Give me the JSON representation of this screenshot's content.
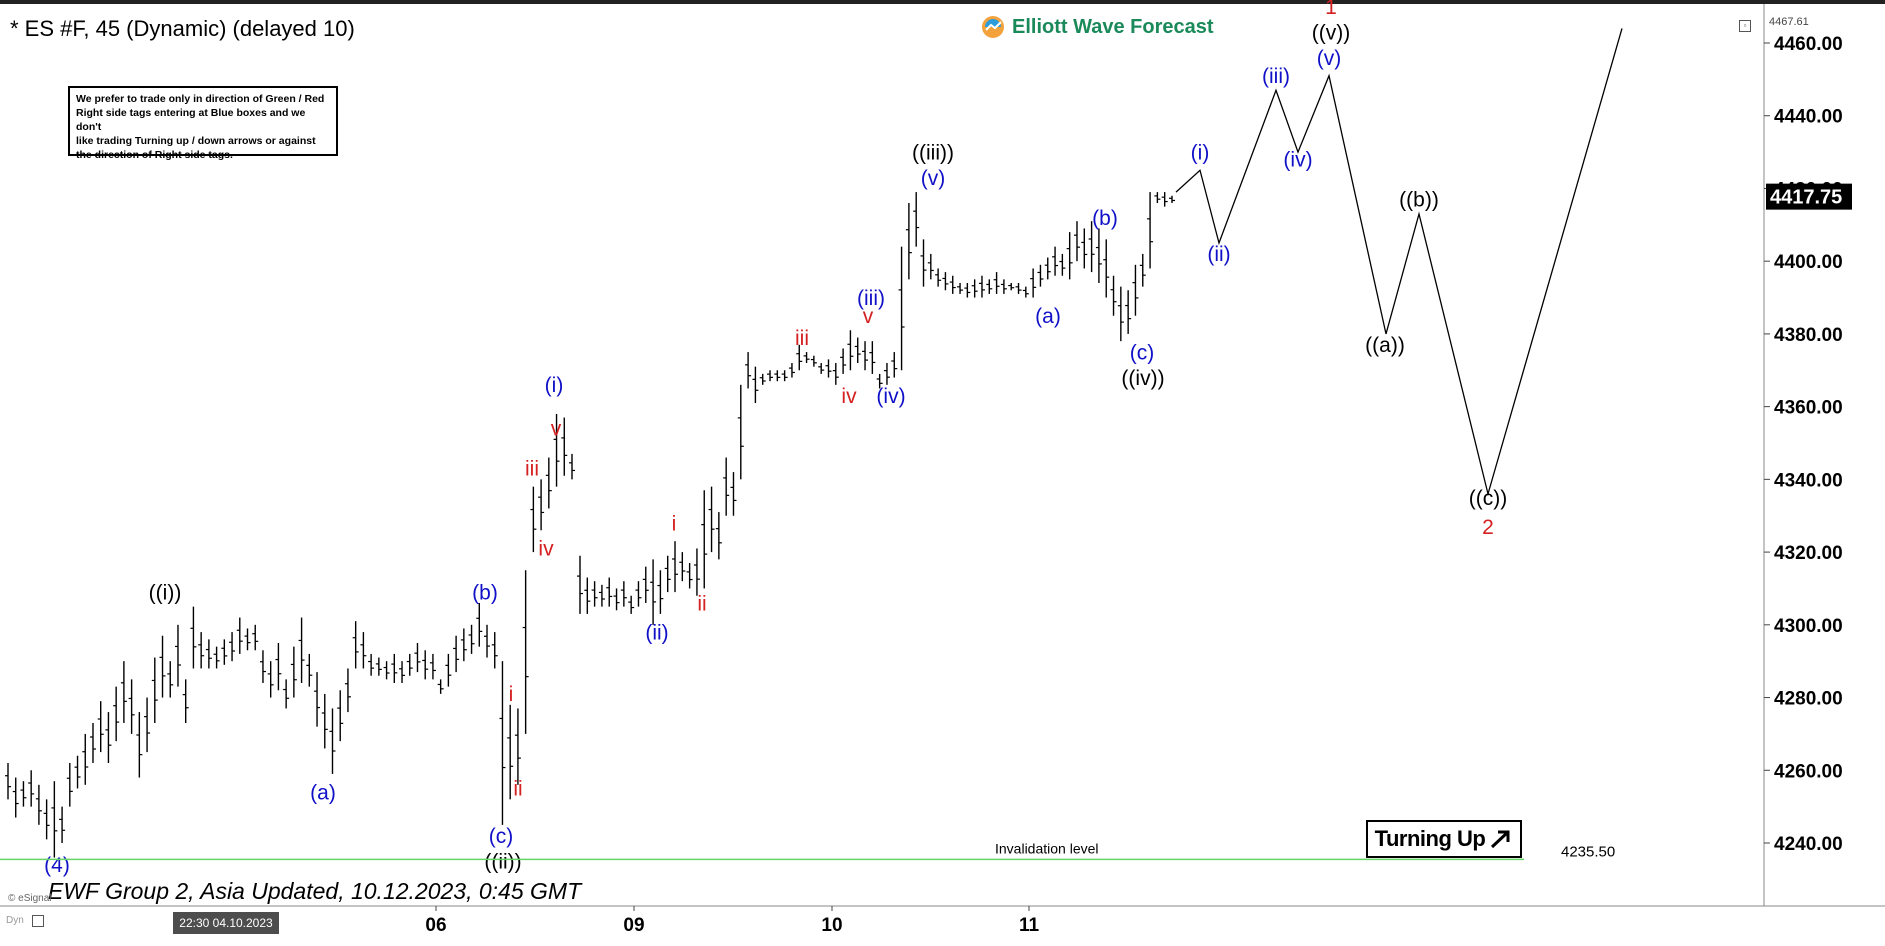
{
  "header": {
    "title": "* ES #F, 45 (Dynamic) (delayed 10)",
    "brand": "Elliott Wave Forecast"
  },
  "note_box": {
    "lines": [
      "We prefer to trade only in direction of Green / Red",
      "Right side tags entering at Blue boxes and we don't",
      "like trading Turning up / down arrows or against",
      "the direction of Right side tags."
    ]
  },
  "footer": {
    "text": "EWF Group 2, Asia Updated, 10.12.2023, 0:45 GMT",
    "source": "© eSignal",
    "dyn": "Dyn",
    "date_box": "22:30 04.10.2023"
  },
  "badge": {
    "label": "Turning Up"
  },
  "colors": {
    "blue": "#1010c8",
    "red": "#d42020",
    "black": "#000000",
    "green": "#66d466",
    "bar": "#000000",
    "brand_green": "#1b8a5a"
  },
  "chart_data": {
    "type": "ohlc",
    "ylim": [
      4225,
      4472
    ],
    "y_ticks": [
      "4240.00",
      "4260.00",
      "4280.00",
      "4300.00",
      "4320.00",
      "4340.00",
      "4360.00",
      "4380.00",
      "4400.00",
      "4420.00",
      "4440.00",
      "4460.00"
    ],
    "x_ticks": [
      "06",
      "09",
      "10",
      "11"
    ],
    "top_readout": "4467.61",
    "last_price": "4417.75",
    "invalidation": {
      "label": "Invalidation level",
      "value": 4235.5,
      "value_label": "4235.50"
    },
    "bars": [
      [
        4262,
        4252
      ],
      [
        4258,
        4247
      ],
      [
        4257,
        4250
      ],
      [
        4260,
        4250
      ],
      [
        4256,
        4245
      ],
      [
        4252,
        4241
      ],
      [
        4257,
        4236
      ],
      [
        4250,
        4240
      ],
      [
        4262,
        4250
      ],
      [
        4264,
        4255
      ],
      [
        4270,
        4256
      ],
      [
        4273,
        4262
      ],
      [
        4279,
        4265
      ],
      [
        4276,
        4262
      ],
      [
        4283,
        4268
      ],
      [
        4290,
        4273
      ],
      [
        4285,
        4270
      ],
      [
        4276,
        4258
      ],
      [
        4280,
        4265
      ],
      [
        4291,
        4273
      ],
      [
        4297,
        4280
      ],
      [
        4290,
        4280
      ],
      [
        4300,
        4283
      ],
      [
        4285,
        4273
      ],
      [
        4305,
        4288
      ],
      [
        4298,
        4288
      ],
      [
        4296,
        4288
      ],
      [
        4294,
        4288
      ],
      [
        4296,
        4289
      ],
      [
        4298,
        4290
      ],
      [
        4302,
        4292
      ],
      [
        4299,
        4293
      ],
      [
        4300,
        4293
      ],
      [
        4293,
        4284
      ],
      [
        4290,
        4280
      ],
      [
        4295,
        4282
      ],
      [
        4285,
        4277
      ],
      [
        4294,
        4280
      ],
      [
        4302,
        4284
      ],
      [
        4292,
        4283
      ],
      [
        4287,
        4272
      ],
      [
        4281,
        4266
      ],
      [
        4277,
        4259
      ],
      [
        4282,
        4268
      ],
      [
        4288,
        4276
      ],
      [
        4301,
        4288
      ],
      [
        4298,
        4288
      ],
      [
        4292,
        4286
      ],
      [
        4291,
        4286
      ],
      [
        4290,
        4285
      ],
      [
        4292,
        4284
      ],
      [
        4290,
        4284
      ],
      [
        4292,
        4286
      ],
      [
        4295,
        4287
      ],
      [
        4293,
        4285
      ],
      [
        4292,
        4285
      ],
      [
        4285,
        4281
      ],
      [
        4292,
        4283
      ],
      [
        4297,
        4287
      ],
      [
        4299,
        4290
      ],
      [
        4300,
        4292
      ],
      [
        4306,
        4294
      ],
      [
        4300,
        4291
      ],
      [
        4298,
        4288
      ],
      [
        4290,
        4245
      ],
      [
        4278,
        4252
      ],
      [
        4277,
        4256
      ],
      [
        4315,
        4270
      ],
      [
        4338,
        4320
      ],
      [
        4340,
        4326
      ],
      [
        4346,
        4332
      ],
      [
        4358,
        4338
      ],
      [
        4357,
        4341
      ],
      [
        4347,
        4340
      ]
    ],
    "bars2": [
      [
        4319,
        4303
      ],
      [
        4313,
        4303
      ],
      [
        4312,
        4305
      ],
      [
        4311,
        4305
      ],
      [
        4313,
        4305
      ],
      [
        4310,
        4304
      ],
      [
        4312,
        4305
      ],
      [
        4308,
        4303
      ],
      [
        4312,
        4305
      ],
      [
        4316,
        4306
      ],
      [
        4318,
        4300
      ],
      [
        4315,
        4303
      ],
      [
        4319,
        4309
      ],
      [
        4323,
        4309
      ],
      [
        4320,
        4312
      ],
      [
        4317,
        4310
      ],
      [
        4321,
        4308
      ],
      [
        4337,
        4310
      ],
      [
        4338,
        4320
      ],
      [
        4331,
        4318
      ],
      [
        4346,
        4330
      ],
      [
        4342,
        4330
      ],
      [
        4366,
        4340
      ],
      [
        4375,
        4365
      ],
      [
        4371,
        4361
      ],
      [
        4369,
        4366
      ],
      [
        4370,
        4367
      ],
      [
        4370,
        4367
      ],
      [
        4370,
        4367
      ],
      [
        4372,
        4368
      ],
      [
        4377,
        4370
      ],
      [
        4375,
        4372
      ],
      [
        4374,
        4371
      ],
      [
        4372,
        4369
      ],
      [
        4373,
        4368
      ],
      [
        4372,
        4366
      ],
      [
        4376,
        4369
      ],
      [
        4381,
        4370
      ],
      [
        4379,
        4372
      ],
      [
        4378,
        4370
      ],
      [
        4378,
        4369
      ],
      [
        4369,
        4365
      ],
      [
        4372,
        4366
      ],
      [
        4375,
        4368
      ],
      [
        4404,
        4370
      ],
      [
        4416,
        4395
      ],
      [
        4419,
        4404
      ],
      [
        4406,
        4393
      ],
      [
        4402,
        4395
      ],
      [
        4398,
        4393
      ],
      [
        4397,
        4392
      ],
      [
        4396,
        4391
      ],
      [
        4394,
        4391
      ],
      [
        4394,
        4390
      ],
      [
        4395,
        4390
      ],
      [
        4396,
        4390
      ],
      [
        4395,
        4391
      ],
      [
        4397,
        4391
      ],
      [
        4395,
        4391
      ],
      [
        4394,
        4392
      ],
      [
        4394,
        4391
      ],
      [
        4393,
        4390
      ],
      [
        4398,
        4390
      ],
      [
        4399,
        4393
      ],
      [
        4401,
        4395
      ],
      [
        4404,
        4396
      ],
      [
        4402,
        4396
      ],
      [
        4408,
        4395
      ],
      [
        4411,
        4400
      ],
      [
        4409,
        4398
      ],
      [
        4411,
        4397
      ],
      [
        4409,
        4394
      ],
      [
        4406,
        4390
      ],
      [
        4396,
        4385
      ],
      [
        4393,
        4378
      ],
      [
        4392,
        4380
      ],
      [
        4399,
        4385
      ],
      [
        4402,
        4393
      ],
      [
        4419,
        4398
      ],
      [
        4419,
        4416
      ],
      [
        4419,
        4415
      ],
      [
        4418,
        4416
      ]
    ],
    "projection": [
      [
        4419,
        1
      ],
      [
        4425,
        1
      ],
      [
        4405,
        2
      ],
      [
        4447,
        3
      ],
      [
        4430,
        4
      ],
      [
        4451,
        5
      ],
      [
        4380,
        6
      ],
      [
        4413,
        7
      ],
      [
        4336,
        8
      ],
      [
        4464,
        9
      ]
    ],
    "labels": [
      {
        "t": "((i))",
        "x": 165,
        "y": 4307,
        "c": "black"
      },
      {
        "t": "(a)",
        "x": 323,
        "y": 4252,
        "c": "blue"
      },
      {
        "t": "(b)",
        "x": 485,
        "y": 4307,
        "c": "blue"
      },
      {
        "t": "(c)",
        "x": 501,
        "y": 4240,
        "c": "blue"
      },
      {
        "t": "((ii))",
        "x": 503,
        "y": 4233,
        "c": "black"
      },
      {
        "t": "(4)",
        "x": 57,
        "y": 4232,
        "c": "blue"
      },
      {
        "t": "i",
        "x": 511,
        "y": 4279,
        "c": "red"
      },
      {
        "t": "ii",
        "x": 518,
        "y": 4253,
        "c": "red"
      },
      {
        "t": "iii",
        "x": 532,
        "y": 4341,
        "c": "red"
      },
      {
        "t": "iv",
        "x": 546,
        "y": 4319,
        "c": "red"
      },
      {
        "t": "v",
        "x": 556,
        "y": 4352,
        "c": "red"
      },
      {
        "t": "(i)",
        "x": 554,
        "y": 4364,
        "c": "blue"
      },
      {
        "t": "(ii)",
        "x": 657,
        "y": 4296,
        "c": "blue"
      },
      {
        "t": "i",
        "x": 674,
        "y": 4326,
        "c": "red"
      },
      {
        "t": "ii",
        "x": 702,
        "y": 4304,
        "c": "red"
      },
      {
        "t": "iii",
        "x": 802,
        "y": 4377,
        "c": "red"
      },
      {
        "t": "iv",
        "x": 849,
        "y": 4361,
        "c": "red"
      },
      {
        "t": "v",
        "x": 868,
        "y": 4383,
        "c": "red"
      },
      {
        "t": "(iii)",
        "x": 871,
        "y": 4388,
        "c": "blue"
      },
      {
        "t": "(iv)",
        "x": 891,
        "y": 4361,
        "c": "blue"
      },
      {
        "t": "((iii))",
        "x": 933,
        "y": 4428,
        "c": "black"
      },
      {
        "t": "(v)",
        "x": 933,
        "y": 4421,
        "c": "blue"
      },
      {
        "t": "(a)",
        "x": 1048,
        "y": 4383,
        "c": "blue"
      },
      {
        "t": "(b)",
        "x": 1105,
        "y": 4410,
        "c": "blue"
      },
      {
        "t": "(c)",
        "x": 1142,
        "y": 4373,
        "c": "blue"
      },
      {
        "t": "((iv))",
        "x": 1143,
        "y": 4366,
        "c": "black"
      },
      {
        "t": "(i)",
        "x": 1200,
        "y": 4428,
        "c": "blue"
      },
      {
        "t": "(ii)",
        "x": 1219,
        "y": 4400,
        "c": "blue"
      },
      {
        "t": "(iii)",
        "x": 1276,
        "y": 4449,
        "c": "blue"
      },
      {
        "t": "(iv)",
        "x": 1298,
        "y": 4426,
        "c": "blue"
      },
      {
        "t": "(v)",
        "x": 1329,
        "y": 4454,
        "c": "blue"
      },
      {
        "t": "((v))",
        "x": 1331,
        "y": 4461,
        "c": "black"
      },
      {
        "t": "1",
        "x": 1331,
        "y": 4468,
        "c": "red"
      },
      {
        "t": "((a))",
        "x": 1385,
        "y": 4375,
        "c": "black"
      },
      {
        "t": "((b))",
        "x": 1419,
        "y": 4415,
        "c": "black"
      },
      {
        "t": "((c))",
        "x": 1488,
        "y": 4333,
        "c": "black"
      },
      {
        "t": "2",
        "x": 1488,
        "y": 4325,
        "c": "red"
      }
    ]
  }
}
